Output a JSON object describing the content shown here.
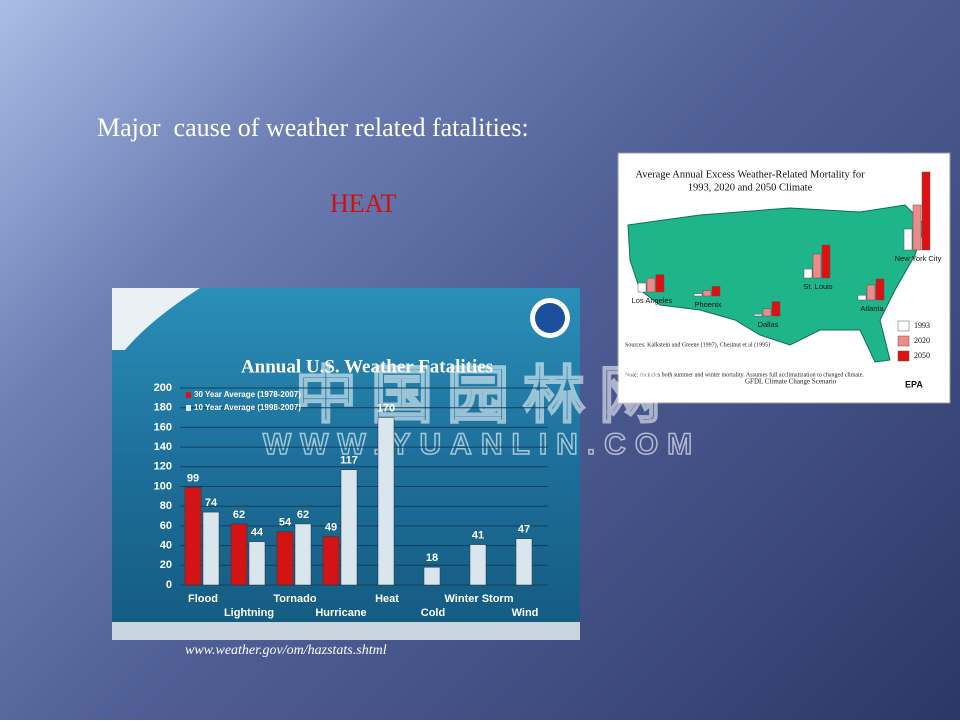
{
  "slide": {
    "title": "Major  cause of weather related fatalities:",
    "highlight": "HEAT",
    "source": "www.weather.gov/om/hazstats.shtml",
    "watermark": "中国园林网",
    "watermark_url": "WWW.YUANLIN.COM"
  },
  "chart_data": [
    {
      "type": "bar",
      "title": "Annual U.S. Weather Fatalities",
      "categories": [
        "Flood",
        "Lightning",
        "Tornado",
        "Hurricane",
        "Heat",
        "Cold",
        "Winter Storm",
        "Wind"
      ],
      "series": [
        {
          "name": "30 Year Average (1978-2007)",
          "color": "#d41414",
          "values": [
            99,
            62,
            54,
            49,
            null,
            null,
            null,
            null
          ]
        },
        {
          "name": "10 Year Average (1998-2007)",
          "color": "#d9e6ee",
          "values": [
            74,
            44,
            62,
            117,
            170,
            18,
            41,
            47
          ]
        }
      ],
      "ylim": [
        0,
        200
      ],
      "yticks": [
        0,
        20,
        40,
        60,
        80,
        100,
        120,
        140,
        160,
        180,
        200
      ],
      "grid": true
    },
    {
      "type": "bar",
      "title": "Average Annual Excess Weather-Related Mortality for",
      "subtitle": "1993, 2020 and 2050 Climate",
      "categories": [
        "Los Angeles",
        "Phoenix",
        "Dallas",
        "St. Louis",
        "Atlanta",
        "New York City"
      ],
      "series": [
        {
          "name": "1993",
          "color": "#ffffff",
          "values": [
            150,
            40,
            30,
            150,
            80,
            350
          ]
        },
        {
          "name": "2020",
          "color": "#f08a8a",
          "values": [
            230,
            90,
            120,
            400,
            250,
            750
          ]
        },
        {
          "name": "2050",
          "color": "#e01010",
          "values": [
            290,
            160,
            240,
            550,
            350,
            1300
          ]
        }
      ],
      "ylim": [
        0,
        1500
      ],
      "source": "Sources: Kalkstein and Greene (1997), Chestnut et al (1995)",
      "note": "Note: Includes both summer and winter mortality. Assumes full acclimatization to changed climate.",
      "scenario": "GFDL Climate Change Scenario",
      "agency": "EPA"
    }
  ]
}
